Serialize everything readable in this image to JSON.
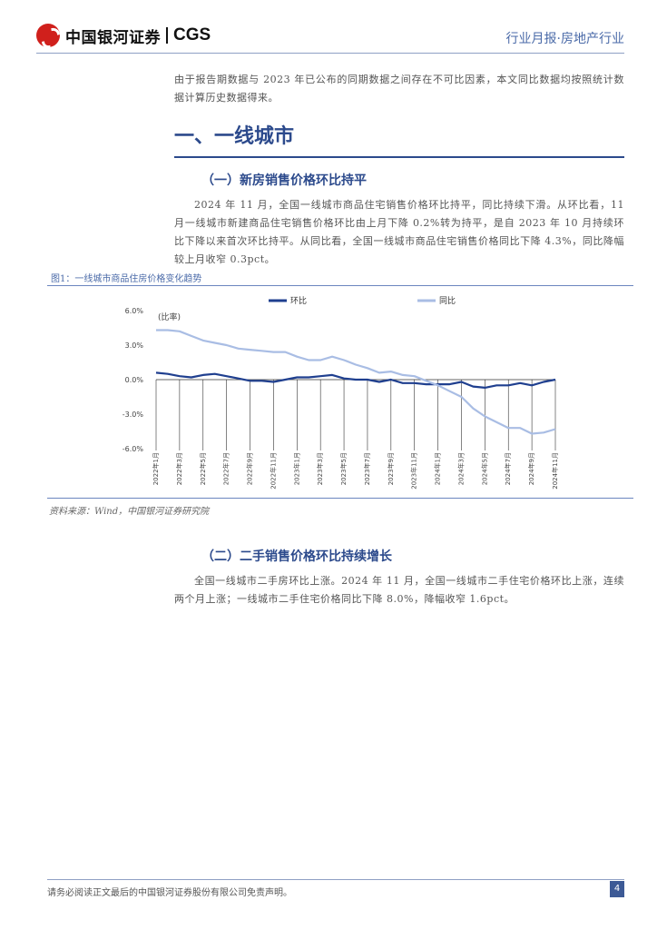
{
  "header": {
    "brand_cn": "中国银河证券",
    "brand_en": "CGS",
    "report_type": "行业月报·房地产行业"
  },
  "intro_note": "由于报告期数据与 2023 年已公布的同期数据之间存在不可比因素，本文同比数据均按照统计数据计算历史数据得来。",
  "section1": {
    "title": "一、一线城市"
  },
  "sub1": {
    "title": "（一）新房销售价格环比持平",
    "body": "2024 年 11 月，全国一线城市商品住宅销售价格环比持平，同比持续下滑。从环比看，11 月一线城市新建商品住宅销售价格环比由上月下降 0.2%转为持平，是自 2023 年 10 月持续环比下降以来首次环比持平。从同比看，全国一线城市商品住宅销售价格同比下降 4.3%，同比降幅较上月收窄 0.3pct。"
  },
  "figure": {
    "title": "图1：一线城市商品住房价格变化趋势",
    "source": "资料来源：Wind，中国银河证券研究院"
  },
  "chart_data": {
    "type": "line",
    "unit_label": "(比率)",
    "x": [
      "2022年1月",
      "2022年2月",
      "2022年3月",
      "2022年4月",
      "2022年5月",
      "2022年6月",
      "2022年7月",
      "2022年8月",
      "2022年9月",
      "2022年10月",
      "2022年11月",
      "2022年12月",
      "2023年1月",
      "2023年2月",
      "2023年3月",
      "2023年4月",
      "2023年5月",
      "2023年6月",
      "2023年7月",
      "2023年8月",
      "2023年9月",
      "2023年10月",
      "2023年11月",
      "2023年12月",
      "2024年1月",
      "2024年2月",
      "2024年3月",
      "2024年4月",
      "2024年5月",
      "2024年6月",
      "2024年7月",
      "2024年8月",
      "2024年9月",
      "2024年10月",
      "2024年11月"
    ],
    "x_tick_labels": [
      "2022年1月",
      "2022年3月",
      "2022年5月",
      "2022年7月",
      "2022年9月",
      "2022年11月",
      "2023年1月",
      "2023年3月",
      "2023年5月",
      "2023年7月",
      "2023年9月",
      "2023年11月",
      "2024年1月",
      "2024年3月",
      "2024年5月",
      "2024年7月",
      "2024年9月",
      "2024年11月"
    ],
    "y_ticks": [
      "6.0%",
      "3.0%",
      "0.0%",
      "-3.0%",
      "-6.0%"
    ],
    "ylim": [
      -6.0,
      6.0
    ],
    "grid": false,
    "legend_position": "top",
    "series": [
      {
        "name": "环比",
        "color": "#1f3f8f",
        "values": [
          0.6,
          0.5,
          0.3,
          0.2,
          0.4,
          0.5,
          0.3,
          0.1,
          -0.1,
          -0.1,
          -0.2,
          0.0,
          0.2,
          0.2,
          0.3,
          0.4,
          0.1,
          0.0,
          0.0,
          -0.2,
          0.0,
          -0.3,
          -0.3,
          -0.4,
          -0.4,
          -0.4,
          -0.2,
          -0.6,
          -0.7,
          -0.5,
          -0.5,
          -0.3,
          -0.5,
          -0.2,
          0.0
        ]
      },
      {
        "name": "同比",
        "color": "#a9bde4",
        "values": [
          4.3,
          4.3,
          4.2,
          3.8,
          3.4,
          3.2,
          3.0,
          2.7,
          2.6,
          2.5,
          2.4,
          2.4,
          2.0,
          1.7,
          1.7,
          2.0,
          1.7,
          1.3,
          1.0,
          0.6,
          0.7,
          0.4,
          0.3,
          -0.1,
          -0.5,
          -1.0,
          -1.5,
          -2.5,
          -3.2,
          -3.7,
          -4.2,
          -4.2,
          -4.7,
          -4.6,
          -4.3
        ]
      }
    ]
  },
  "sub2": {
    "title": "（二）二手销售价格环比持续增长",
    "body": "全国一线城市二手房环比上涨。2024 年 11 月，全国一线城市二手住宅价格环比上涨，连续两个月上涨；一线城市二手住宅价格同比下降 8.0%，降幅收窄 1.6pct。"
  },
  "footer": {
    "disclaimer": "请务必阅读正文最后的中国银河证券股份有限公司免责声明。",
    "page": "4"
  }
}
